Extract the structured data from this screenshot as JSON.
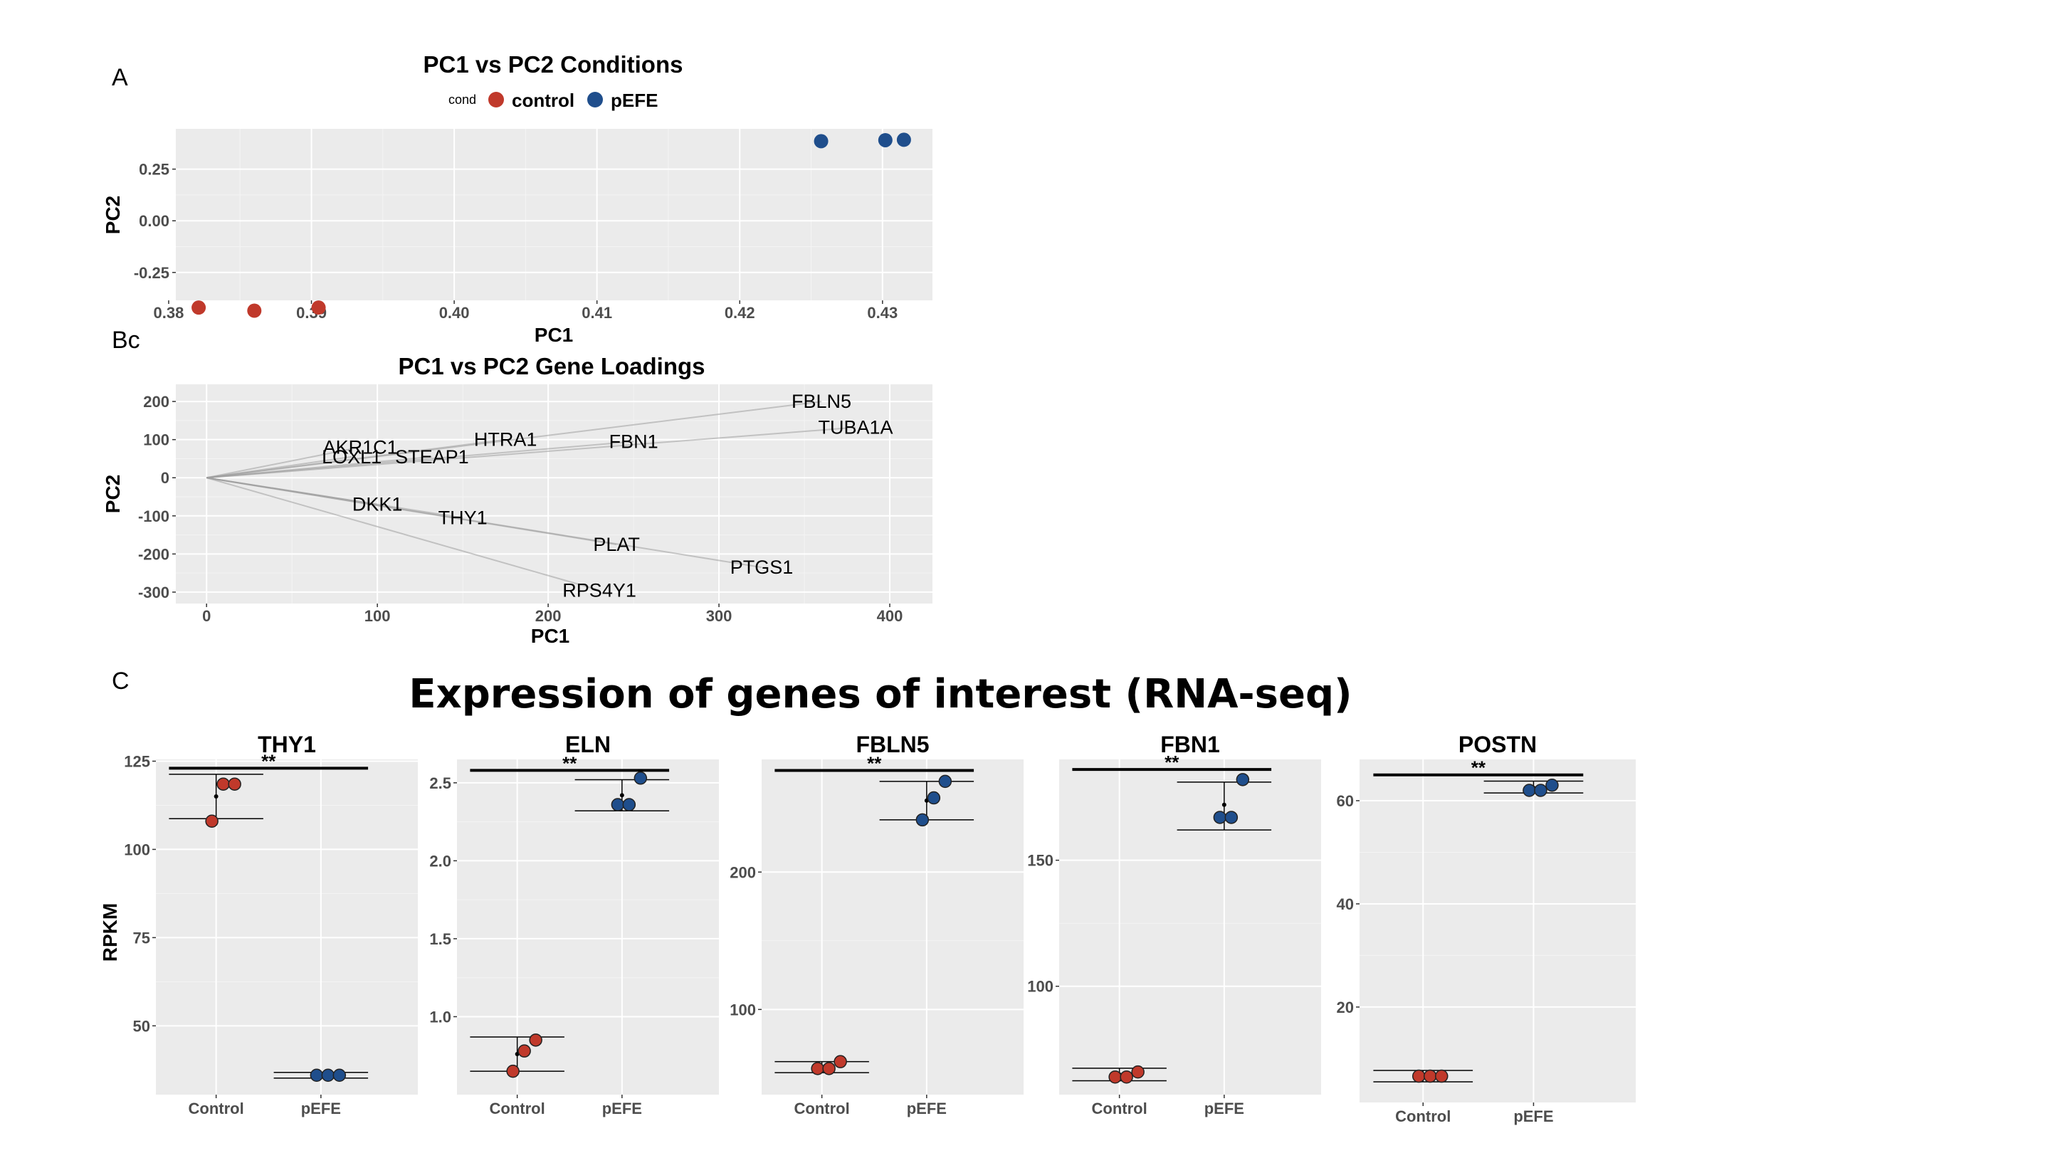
{
  "panel_labels": {
    "a": "A",
    "b": "Bc",
    "c": "C"
  },
  "colors": {
    "control": "#c0392b",
    "pefe": "#1f4e8c",
    "panel_bg": "#ebebeb",
    "grid": "#ffffff",
    "arrow": "#9e9e9e"
  },
  "chart_data": [
    {
      "id": "pca_conditions",
      "type": "scatter",
      "title": "PC1 vs PC2 Conditions",
      "xlabel": "PC1",
      "ylabel": "PC2",
      "legend_title": "cond",
      "legend_position": "top",
      "xlim": [
        0.3805,
        0.4335
      ],
      "ylim": [
        -0.385,
        0.445
      ],
      "xticks": [
        {
          "v": 0.38,
          "label": "0.38"
        },
        {
          "v": 0.39,
          "label": "0.39"
        },
        {
          "v": 0.4,
          "label": "0.40"
        },
        {
          "v": 0.41,
          "label": "0.41"
        },
        {
          "v": 0.42,
          "label": "0.42"
        },
        {
          "v": 0.43,
          "label": "0.43"
        }
      ],
      "yticks": [
        {
          "v": 0.25,
          "label": "0.25"
        },
        {
          "v": 0.0,
          "label": "0.00"
        },
        {
          "v": -0.25,
          "label": "-0.25"
        }
      ],
      "series": [
        {
          "name": "control",
          "color": "#c0392b",
          "points": [
            {
              "x": 0.3821,
              "y": -0.42
            },
            {
              "x": 0.386,
              "y": -0.435
            },
            {
              "x": 0.3905,
              "y": -0.42
            }
          ]
        },
        {
          "name": "pEFE",
          "color": "#1f4e8c",
          "points": [
            {
              "x": 0.4257,
              "y": 0.385
            },
            {
              "x": 0.4302,
              "y": 0.39
            },
            {
              "x": 0.4315,
              "y": 0.392
            }
          ]
        }
      ]
    },
    {
      "id": "pca_loadings",
      "type": "biplot",
      "title": "PC1 vs PC2 Gene Loadings",
      "xlabel": "PC1",
      "ylabel": "PC2",
      "xlim": [
        -18,
        425
      ],
      "ylim": [
        -330,
        245
      ],
      "xticks": [
        {
          "v": 0,
          "label": "0"
        },
        {
          "v": 100,
          "label": "100"
        },
        {
          "v": 200,
          "label": "200"
        },
        {
          "v": 300,
          "label": "300"
        },
        {
          "v": 400,
          "label": "400"
        }
      ],
      "yticks": [
        {
          "v": 200,
          "label": "200"
        },
        {
          "v": 100,
          "label": "100"
        },
        {
          "v": 0,
          "label": "0"
        },
        {
          "v": -100,
          "label": "-100"
        },
        {
          "v": -200,
          "label": "-200"
        },
        {
          "v": -300,
          "label": "-300"
        }
      ],
      "loadings": [
        {
          "gene": "FBLN5",
          "x": 360,
          "y": 200
        },
        {
          "gene": "TUBA1A",
          "x": 380,
          "y": 132
        },
        {
          "gene": "HTRA1",
          "x": 175,
          "y": 100
        },
        {
          "gene": "FBN1",
          "x": 250,
          "y": 95
        },
        {
          "gene": "AKR1C1",
          "x": 90,
          "y": 80
        },
        {
          "gene": "LOXL1",
          "x": 85,
          "y": 55
        },
        {
          "gene": "STEAP1",
          "x": 132,
          "y": 55
        },
        {
          "gene": "DKK1",
          "x": 100,
          "y": -70
        },
        {
          "gene": "THY1",
          "x": 150,
          "y": -105
        },
        {
          "gene": "PLAT",
          "x": 240,
          "y": -175
        },
        {
          "gene": "PTGS1",
          "x": 325,
          "y": -235
        },
        {
          "gene": "RPS4Y1",
          "x": 230,
          "y": -295
        }
      ]
    },
    {
      "id": "rnaseq_expression",
      "type": "scatter",
      "title": "Expression of genes of interest (RNA-seq)",
      "ylabel": "RPKM",
      "categories": [
        "Control",
        "pEFE"
      ],
      "panels": [
        {
          "gene": "THY1",
          "sig": "**",
          "ylim": [
            30.5,
            125.5
          ],
          "yticks": [
            {
              "v": 50,
              "label": "50"
            },
            {
              "v": 75,
              "label": "75"
            },
            {
              "v": 100,
              "label": "100"
            },
            {
              "v": 125,
              "label": "125"
            }
          ],
          "control": [
            108,
            118.5,
            118.5
          ],
          "pefe": [
            36,
            36,
            36
          ],
          "control_mean": 115,
          "control_err": [
            108.7,
            121.3
          ],
          "pefe_mean": 36,
          "pefe_err": [
            35.2,
            36.8
          ],
          "sig_y": 123
        },
        {
          "gene": "ELN",
          "sig": "**",
          "ylim": [
            0.5,
            2.65
          ],
          "yticks": [
            {
              "v": 1.0,
              "label": "1.0"
            },
            {
              "v": 1.5,
              "label": "1.5"
            },
            {
              "v": 2.0,
              "label": "2.0"
            },
            {
              "v": 2.5,
              "label": "2.5"
            }
          ],
          "control": [
            0.65,
            0.78,
            0.85
          ],
          "pefe": [
            2.36,
            2.36,
            2.53
          ],
          "control_mean": 0.76,
          "control_err": [
            0.65,
            0.87
          ],
          "pefe_mean": 2.42,
          "pefe_err": [
            2.32,
            2.52
          ],
          "sig_y": 2.58
        },
        {
          "gene": "FBLN5",
          "sig": "**",
          "ylim": [
            38,
            282
          ],
          "yticks": [
            {
              "v": 100,
              "label": "100"
            },
            {
              "v": 200,
              "label": "200"
            }
          ],
          "control": [
            57,
            57,
            62
          ],
          "pefe": [
            238,
            254,
            266
          ],
          "control_mean": 58,
          "control_err": [
            54,
            62
          ],
          "pefe_mean": 252,
          "pefe_err": [
            238,
            266
          ],
          "sig_y": 274
        },
        {
          "gene": "FBN1",
          "sig": "**",
          "ylim": [
            57,
            190
          ],
          "yticks": [
            {
              "v": 100,
              "label": "100"
            },
            {
              "v": 150,
              "label": "150"
            }
          ],
          "control": [
            64,
            64,
            66
          ],
          "pefe": [
            167,
            167,
            182
          ],
          "control_mean": 65,
          "control_err": [
            62.5,
            67.5
          ],
          "pefe_mean": 172,
          "pefe_err": [
            162,
            181
          ],
          "sig_y": 186
        },
        {
          "gene": "POSTN",
          "sig": "**",
          "ylim": [
            1.5,
            68
          ],
          "yticks": [
            {
              "v": 20,
              "label": "20"
            },
            {
              "v": 40,
              "label": "40"
            },
            {
              "v": 60,
              "label": "60"
            }
          ],
          "control": [
            6.6,
            6.6,
            6.6
          ],
          "pefe": [
            62,
            62,
            63
          ],
          "control_mean": 6.6,
          "control_err": [
            5.5,
            7.7
          ],
          "pefe_mean": 62.5,
          "pefe_err": [
            61.5,
            63.8
          ],
          "sig_y": 65
        }
      ]
    }
  ]
}
